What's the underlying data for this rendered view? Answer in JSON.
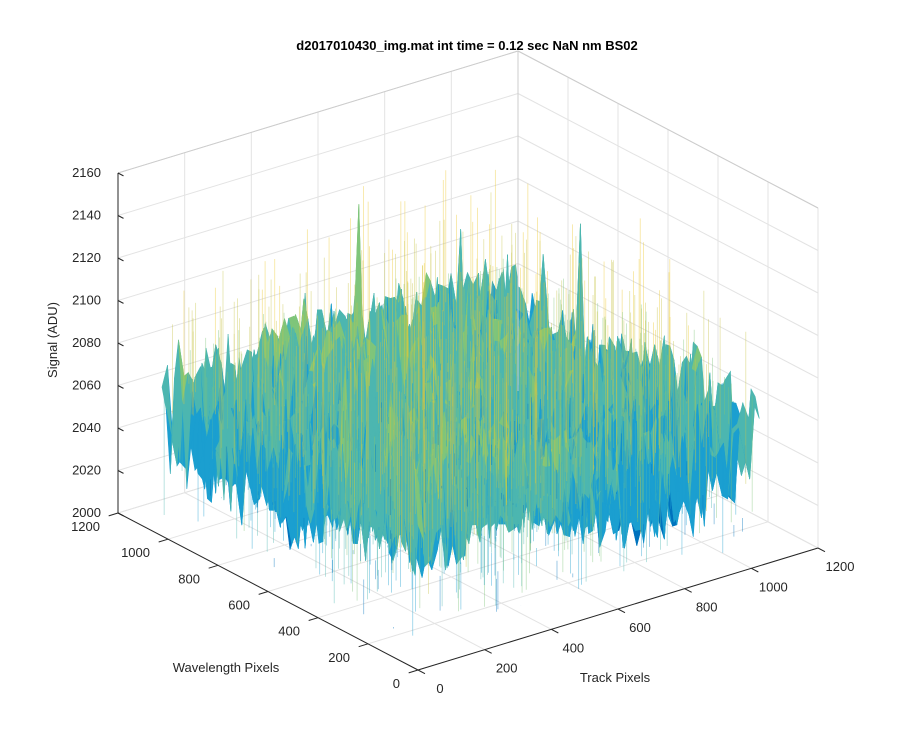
{
  "chart_data": {
    "type": "surface",
    "title": "d2017010430_img.mat int time = 0.12 sec  NaN nm BS02",
    "xlabel": "Track Pixels",
    "ylabel": "Wavelength Pixels",
    "zlabel": "Signal (ADU)",
    "xlim": [
      0,
      1200
    ],
    "ylim": [
      0,
      1200
    ],
    "zlim": [
      2000,
      2160
    ],
    "x_ticks": [
      "0",
      "200",
      "400",
      "600",
      "800",
      "1000",
      "1200"
    ],
    "y_ticks": [
      "0",
      "200",
      "400",
      "600",
      "800",
      "1000",
      "1200"
    ],
    "z_ticks": [
      "2000",
      "2020",
      "2040",
      "2060",
      "2080",
      "2100",
      "2120",
      "2140",
      "2160"
    ],
    "surface": {
      "x_extent": [
        0,
        1024
      ],
      "y_extent": [
        0,
        1024
      ],
      "baseline_signal": 2060,
      "noise_range": [
        2010,
        2150
      ]
    },
    "grid": true,
    "colormap": [
      "#0072bd",
      "#1b9fd0",
      "#4cb6b0",
      "#7fc57a",
      "#c8c54a",
      "#edc92f"
    ]
  }
}
